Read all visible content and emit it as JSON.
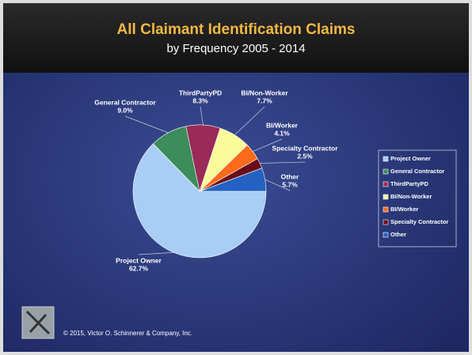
{
  "chart_data": {
    "type": "pie",
    "title": "All Claimant Identification Claims",
    "subtitle": "by Frequency 2005 - 2014",
    "categories": [
      "Project Owner",
      "General Contractor",
      "ThirdPartyPD",
      "BI/Non-Worker",
      "BI/Worker",
      "Specialty Contractor",
      "Other"
    ],
    "values": [
      62.7,
      9.0,
      8.3,
      7.7,
      4.1,
      2.5,
      5.7
    ],
    "value_labels": [
      "62.7%",
      "9.0%",
      "8.3%",
      "7.7%",
      "4.1%",
      "2.5%",
      "5.7%"
    ],
    "colors": [
      "#a8cdf6",
      "#3c8c5c",
      "#9a2a58",
      "#fbfb9c",
      "#ff6a1c",
      "#6a0c1c",
      "#2262c2"
    ],
    "legend": "right",
    "footer": "© 2015, Victor O. Schinnerer & Company, Inc."
  }
}
